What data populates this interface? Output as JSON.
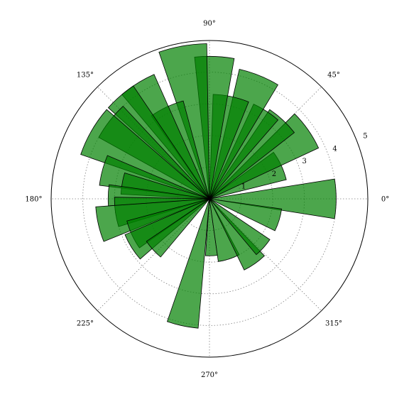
{
  "chart_data": {
    "type": "polar-bar",
    "title": "",
    "angle_unit": "degrees",
    "r_max": 5,
    "r_ticks": [
      1,
      2,
      3,
      4,
      5
    ],
    "r_tick_labels": [
      "1",
      "2",
      "3",
      "4",
      "5"
    ],
    "theta_ticks": [
      0,
      45,
      90,
      135,
      180,
      225,
      270,
      315
    ],
    "theta_tick_labels": [
      "0°",
      "45°",
      "90°",
      "135°",
      "180°",
      "225°",
      "270°",
      "315°"
    ],
    "grid": true,
    "bar_color": "#008000",
    "edge_color": "#000000",
    "alpha": 0.7,
    "bars": [
      {
        "theta": 0,
        "width": 18,
        "r": 4.0
      },
      {
        "theta": 25,
        "width": 22,
        "r": 2.5
      },
      {
        "theta": 35,
        "width": 20,
        "r": 3.8
      },
      {
        "theta": 47,
        "width": 18,
        "r": 3.4
      },
      {
        "theta": 57,
        "width": 16,
        "r": 3.3
      },
      {
        "theta": 68,
        "width": 18,
        "r": 4.2
      },
      {
        "theta": 78,
        "width": 20,
        "r": 3.3
      },
      {
        "theta": 88,
        "width": 16,
        "r": 4.5
      },
      {
        "theta": 100,
        "width": 18,
        "r": 4.9
      },
      {
        "theta": 115,
        "width": 20,
        "r": 3.2
      },
      {
        "theta": 122,
        "width": 16,
        "r": 4.3
      },
      {
        "theta": 131,
        "width": 14,
        "r": 4.3
      },
      {
        "theta": 142,
        "width": 18,
        "r": 4.0
      },
      {
        "theta": 150,
        "width": 22,
        "r": 4.3
      },
      {
        "theta": 165,
        "width": 16,
        "r": 3.5
      },
      {
        "theta": 170,
        "width": 14,
        "r": 2.8
      },
      {
        "theta": 178,
        "width": 12,
        "r": 3.2
      },
      {
        "theta": 188,
        "width": 18,
        "r": 3.0
      },
      {
        "theta": 193,
        "width": 18,
        "r": 3.6
      },
      {
        "theta": 205,
        "width": 20,
        "r": 2.7
      },
      {
        "theta": 212,
        "width": 18,
        "r": 2.9
      },
      {
        "theta": 222,
        "width": 16,
        "r": 2.4
      },
      {
        "theta": 258,
        "width": 14,
        "r": 4.1
      },
      {
        "theta": 272,
        "width": 12,
        "r": 1.8
      },
      {
        "theta": 288,
        "width": 20,
        "r": 2.0
      },
      {
        "theta": 305,
        "width": 18,
        "r": 2.5
      },
      {
        "theta": 318,
        "width": 16,
        "r": 2.3
      },
      {
        "theta": 343,
        "width": 18,
        "r": 2.3
      }
    ]
  }
}
